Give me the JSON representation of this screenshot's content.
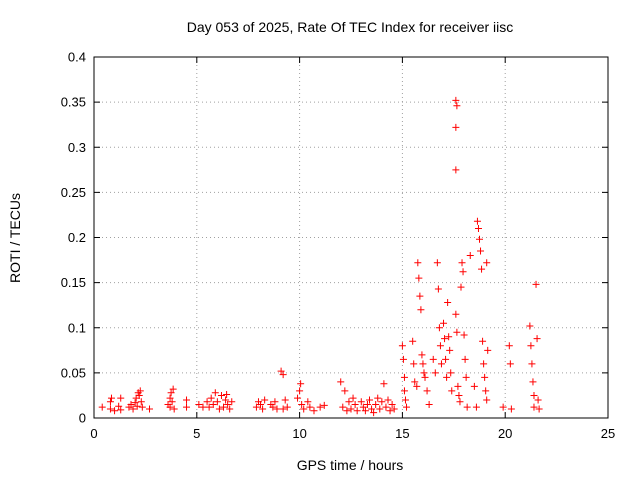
{
  "chart_data": {
    "type": "scatter",
    "title": "Day 053 of 2025, Rate Of TEC Index for receiver iisc",
    "xlabel": "GPS time / hours",
    "ylabel": "ROTI / TECUs",
    "xlim": [
      0,
      25
    ],
    "ylim": [
      0,
      0.4
    ],
    "x_ticks": [
      0,
      5,
      10,
      15,
      20,
      25
    ],
    "x_tick_labels": [
      "0",
      "5",
      "10",
      "15",
      "20",
      "25"
    ],
    "y_ticks": [
      0,
      0.05,
      0.1,
      0.15,
      0.2,
      0.25,
      0.3,
      0.35,
      0.4
    ],
    "y_tick_labels": [
      "0",
      "0.05",
      "0.1",
      "0.15",
      "0.2",
      "0.25",
      "0.3",
      "0.35",
      "0.4"
    ],
    "grid": true,
    "marker": "plus",
    "color": "#ff0000",
    "series": [
      {
        "name": "ROTI",
        "points": [
          [
            0.4,
            0.012
          ],
          [
            0.8,
            0.01
          ],
          [
            0.8,
            0.018
          ],
          [
            0.85,
            0.022
          ],
          [
            1.0,
            0.008
          ],
          [
            1.2,
            0.013
          ],
          [
            1.3,
            0.022
          ],
          [
            1.3,
            0.009
          ],
          [
            1.7,
            0.012
          ],
          [
            1.8,
            0.015
          ],
          [
            1.9,
            0.01
          ],
          [
            2.0,
            0.017
          ],
          [
            2.05,
            0.022
          ],
          [
            2.1,
            0.013
          ],
          [
            2.15,
            0.028
          ],
          [
            2.2,
            0.025
          ],
          [
            2.25,
            0.03
          ],
          [
            2.3,
            0.018
          ],
          [
            2.35,
            0.012
          ],
          [
            2.7,
            0.01
          ],
          [
            3.6,
            0.015
          ],
          [
            3.7,
            0.022
          ],
          [
            3.7,
            0.012
          ],
          [
            3.75,
            0.028
          ],
          [
            3.8,
            0.018
          ],
          [
            3.85,
            0.032
          ],
          [
            3.9,
            0.01
          ],
          [
            4.5,
            0.02
          ],
          [
            4.5,
            0.012
          ],
          [
            5.1,
            0.015
          ],
          [
            5.3,
            0.012
          ],
          [
            5.5,
            0.018
          ],
          [
            5.6,
            0.012
          ],
          [
            5.7,
            0.022
          ],
          [
            5.8,
            0.015
          ],
          [
            5.9,
            0.028
          ],
          [
            6.0,
            0.018
          ],
          [
            6.1,
            0.01
          ],
          [
            6.2,
            0.025
          ],
          [
            6.3,
            0.012
          ],
          [
            6.4,
            0.02
          ],
          [
            6.45,
            0.026
          ],
          [
            6.5,
            0.015
          ],
          [
            6.6,
            0.01
          ],
          [
            6.7,
            0.018
          ],
          [
            7.9,
            0.012
          ],
          [
            8.0,
            0.018
          ],
          [
            8.1,
            0.015
          ],
          [
            8.2,
            0.01
          ],
          [
            8.3,
            0.02
          ],
          [
            8.6,
            0.015
          ],
          [
            8.7,
            0.012
          ],
          [
            8.8,
            0.018
          ],
          [
            8.9,
            0.01
          ],
          [
            9.1,
            0.052
          ],
          [
            9.2,
            0.048
          ],
          [
            9.2,
            0.01
          ],
          [
            9.3,
            0.02
          ],
          [
            9.4,
            0.012
          ],
          [
            9.9,
            0.022
          ],
          [
            10.0,
            0.03
          ],
          [
            10.05,
            0.038
          ],
          [
            10.1,
            0.015
          ],
          [
            10.2,
            0.01
          ],
          [
            10.4,
            0.018
          ],
          [
            10.5,
            0.012
          ],
          [
            10.7,
            0.008
          ],
          [
            11.0,
            0.012
          ],
          [
            11.2,
            0.014
          ],
          [
            12.0,
            0.04
          ],
          [
            12.1,
            0.012
          ],
          [
            12.2,
            0.03
          ],
          [
            12.3,
            0.008
          ],
          [
            12.4,
            0.018
          ],
          [
            12.5,
            0.01
          ],
          [
            12.6,
            0.022
          ],
          [
            12.7,
            0.015
          ],
          [
            12.8,
            0.008
          ],
          [
            13.0,
            0.018
          ],
          [
            13.1,
            0.012
          ],
          [
            13.2,
            0.008
          ],
          [
            13.3,
            0.015
          ],
          [
            13.4,
            0.02
          ],
          [
            13.5,
            0.01
          ],
          [
            13.6,
            0.006
          ],
          [
            13.7,
            0.015
          ],
          [
            13.8,
            0.022
          ],
          [
            13.9,
            0.01
          ],
          [
            14.0,
            0.018
          ],
          [
            14.1,
            0.038
          ],
          [
            14.2,
            0.012
          ],
          [
            14.3,
            0.02
          ],
          [
            14.4,
            0.008
          ],
          [
            14.5,
            0.015
          ],
          [
            14.6,
            0.01
          ],
          [
            15.0,
            0.08
          ],
          [
            15.05,
            0.065
          ],
          [
            15.1,
            0.045
          ],
          [
            15.1,
            0.03
          ],
          [
            15.15,
            0.02
          ],
          [
            15.2,
            0.012
          ],
          [
            15.5,
            0.085
          ],
          [
            15.55,
            0.06
          ],
          [
            15.6,
            0.04
          ],
          [
            15.7,
            0.035
          ],
          [
            15.75,
            0.172
          ],
          [
            15.8,
            0.155
          ],
          [
            15.85,
            0.135
          ],
          [
            15.9,
            0.12
          ],
          [
            15.95,
            0.07
          ],
          [
            16.0,
            0.06
          ],
          [
            16.05,
            0.05
          ],
          [
            16.1,
            0.045
          ],
          [
            16.2,
            0.03
          ],
          [
            16.3,
            0.015
          ],
          [
            16.5,
            0.065
          ],
          [
            16.6,
            0.05
          ],
          [
            16.7,
            0.172
          ],
          [
            16.75,
            0.143
          ],
          [
            16.8,
            0.1
          ],
          [
            16.85,
            0.08
          ],
          [
            16.9,
            0.06
          ],
          [
            17.0,
            0.105
          ],
          [
            17.05,
            0.088
          ],
          [
            17.1,
            0.065
          ],
          [
            17.15,
            0.045
          ],
          [
            17.2,
            0.128
          ],
          [
            17.25,
            0.09
          ],
          [
            17.3,
            0.075
          ],
          [
            17.35,
            0.05
          ],
          [
            17.4,
            0.03
          ],
          [
            17.6,
            0.352
          ],
          [
            17.65,
            0.346
          ],
          [
            17.6,
            0.322
          ],
          [
            17.6,
            0.275
          ],
          [
            17.6,
            0.115
          ],
          [
            17.65,
            0.095
          ],
          [
            17.7,
            0.035
          ],
          [
            17.75,
            0.025
          ],
          [
            17.8,
            0.018
          ],
          [
            17.85,
            0.145
          ],
          [
            17.9,
            0.172
          ],
          [
            17.95,
            0.162
          ],
          [
            18.0,
            0.092
          ],
          [
            18.05,
            0.065
          ],
          [
            18.1,
            0.045
          ],
          [
            18.15,
            0.012
          ],
          [
            18.3,
            0.18
          ],
          [
            18.5,
            0.035
          ],
          [
            18.6,
            0.012
          ],
          [
            18.65,
            0.218
          ],
          [
            18.7,
            0.21
          ],
          [
            18.75,
            0.198
          ],
          [
            18.8,
            0.185
          ],
          [
            18.85,
            0.165
          ],
          [
            18.9,
            0.085
          ],
          [
            18.95,
            0.06
          ],
          [
            19.0,
            0.045
          ],
          [
            19.05,
            0.03
          ],
          [
            19.1,
            0.02
          ],
          [
            19.1,
            0.172
          ],
          [
            19.15,
            0.075
          ],
          [
            19.9,
            0.012
          ],
          [
            20.2,
            0.08
          ],
          [
            20.25,
            0.06
          ],
          [
            20.3,
            0.01
          ],
          [
            21.2,
            0.102
          ],
          [
            21.25,
            0.08
          ],
          [
            21.3,
            0.06
          ],
          [
            21.35,
            0.04
          ],
          [
            21.4,
            0.025
          ],
          [
            21.4,
            0.012
          ],
          [
            21.5,
            0.148
          ],
          [
            21.55,
            0.088
          ],
          [
            21.6,
            0.02
          ],
          [
            21.65,
            0.01
          ]
        ]
      }
    ]
  }
}
